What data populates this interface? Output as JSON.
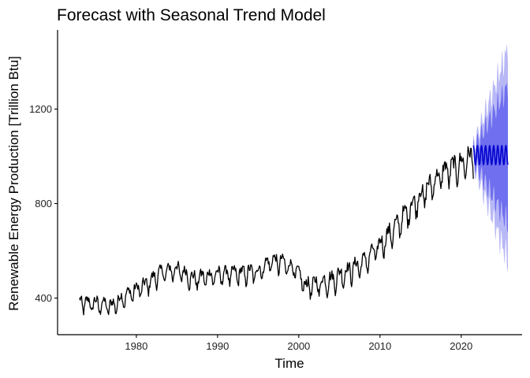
{
  "chart_data": {
    "type": "line",
    "title": "Forecast with Seasonal Trend Model",
    "xlabel": "Time",
    "ylabel": "Renewable Energy Production [Trillion Btu]",
    "xlim": [
      1970.3,
      2027.5
    ],
    "ylim": [
      245,
      1535
    ],
    "x_ticks": [
      1980,
      1990,
      2000,
      2010,
      2020
    ],
    "y_ticks": [
      400,
      800,
      1200
    ],
    "grid": false,
    "legend": "none",
    "colors": {
      "observed": "#000000",
      "forecast_mean": "#0000cc",
      "band_80": "#6f6fef",
      "band_95": "#b8b8f6"
    },
    "observed": {
      "name": "",
      "start": 1973.0,
      "frequency": 12,
      "anchors": [
        [
          1973.0,
          380
        ],
        [
          1975.0,
          375
        ],
        [
          1977.0,
          365
        ],
        [
          1979.0,
          415
        ],
        [
          1981.0,
          450
        ],
        [
          1983.0,
          505
        ],
        [
          1985.0,
          520
        ],
        [
          1987.0,
          478
        ],
        [
          1989.0,
          492
        ],
        [
          1991.0,
          500
        ],
        [
          1993.0,
          502
        ],
        [
          1995.0,
          510
        ],
        [
          1996.5,
          555
        ],
        [
          1998.0,
          548
        ],
        [
          1999.5,
          520
        ],
        [
          2001.0,
          445
        ],
        [
          2002.0,
          455
        ],
        [
          2004.0,
          472
        ],
        [
          2006.0,
          510
        ],
        [
          2008.0,
          548
        ],
        [
          2010.0,
          620
        ],
        [
          2012.0,
          700
        ],
        [
          2014.0,
          790
        ],
        [
          2016.0,
          865
        ],
        [
          2018.0,
          935
        ],
        [
          2020.0,
          960
        ],
        [
          2021.5,
          1000
        ]
      ],
      "seasonal_amplitude": [
        [
          1973,
          32
        ],
        [
          2000,
          38
        ],
        [
          2010,
          45
        ],
        [
          2021.5,
          55
        ]
      ]
    },
    "forecast": {
      "start": 2021.5,
      "end": 2025.75,
      "mean_level": 1005,
      "seasonal_amplitude": 45,
      "band_80_halfwidth": [
        [
          2021.5,
          25
        ],
        [
          2025.75,
          290
        ]
      ],
      "band_95_halfwidth": [
        [
          2021.5,
          40
        ],
        [
          2025.75,
          450
        ]
      ]
    }
  }
}
